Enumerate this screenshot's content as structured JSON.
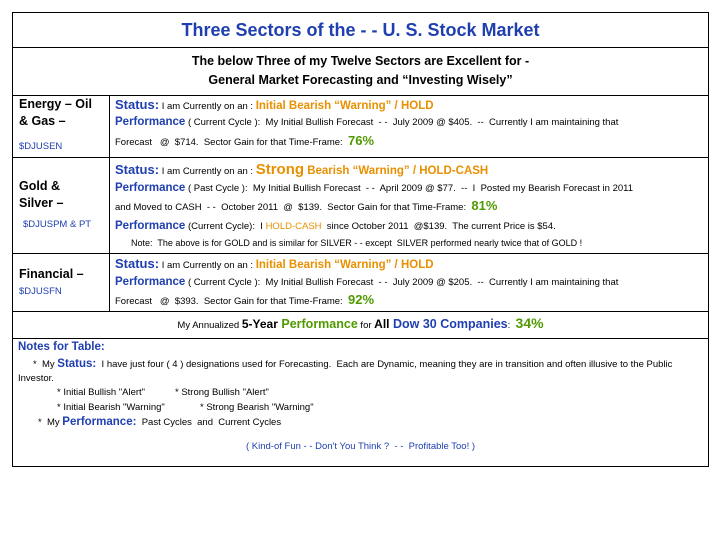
{
  "title": "Three Sectors of the - - U. S. Stock Market",
  "intro": [
    "The below Three of my Twelve Sectors are Excellent for -",
    "General Market Forecasting and “Investing Wisely”"
  ],
  "rows": [
    {
      "sector": [
        "Energy – Oil",
        "& Gas –"
      ],
      "ticker": "$DJUSEN",
      "lines": [
        [
          "Status:",
          " I am Currently on an : ",
          "Initial Bearish “Warning” / HOLD"
        ],
        [
          "Performance",
          " ( Current Cycle ):  My Initial Bullish Forecast  - -  July 2009 @ $405.  --  Currently I am maintaining that"
        ],
        [
          "Forecast   @  $714.  Sector Gain for that Time-Frame:  ",
          "76%"
        ]
      ]
    },
    {
      "sector": [
        "Gold &",
        "Silver –"
      ],
      "ticker": "$DJUSPM & PT",
      "lines": [
        [
          "Status:",
          " I am Currently on an : ",
          "Strong",
          " Bearish “Warning” / HOLD-CASH"
        ],
        [
          "Performance",
          " ( Past Cycle ):  My Initial Bullish Forecast  - -  April 2009 @ $77.  --  I  Posted my Bearish Forecast in 2011"
        ],
        [
          "and Moved to CASH  - -  October 2011  @  $139.  Sector Gain for that Time-Frame:  ",
          "81%"
        ],
        [
          "Performance",
          " (Current Cycle):  I ",
          "HOLD-CASH",
          "  since October 2011  @$139.  The current Price is $54."
        ],
        [
          "Note:  The above is for GOLD and is similar for SILVER - - except  SILVER performed nearly twice that of GOLD !"
        ]
      ]
    },
    {
      "sector": [
        "Financial –"
      ],
      "ticker": "$DJUSFN",
      "lines": [
        [
          "Status:",
          " I am Currently on an : ",
          "Initial Bearish “Warning” / HOLD"
        ],
        [
          "Performance",
          " ( Current Cycle ):  My Initial Bullish Forecast  - -  July 2009 @ $205.  --  Currently I am maintaining that"
        ],
        [
          "Forecast   @  $393.  Sector Gain for that Time-Frame:  ",
          "92%"
        ]
      ]
    }
  ],
  "summary": [
    "My Annualized ",
    "5-Year",
    " Performance",
    " for ",
    "All",
    " Dow 30 Companies",
    ":  ",
    "34%"
  ],
  "notes": {
    "title": "Notes for Table:",
    "status": [
      "*  My ",
      "Status:",
      "  I have just four ( 4 ) designations used for Forecasting.  Each are Dynamic, meaning they are in transition and often illusive to the Public Investor."
    ],
    "designations": [
      [
        "* Initial Bullish \"Alert\"",
        "* Strong Bullish \"Alert\""
      ],
      [
        "* Initial Bearish \"Warning\"",
        "* Strong Bearish \"Warning\""
      ]
    ],
    "performance": [
      "*  My ",
      "Performance:",
      "  Past Cycles  and  Current Cycles"
    ],
    "footer": "( Kind-of Fun - - Don't You Think ?  - -  Profitable Too! )"
  }
}
